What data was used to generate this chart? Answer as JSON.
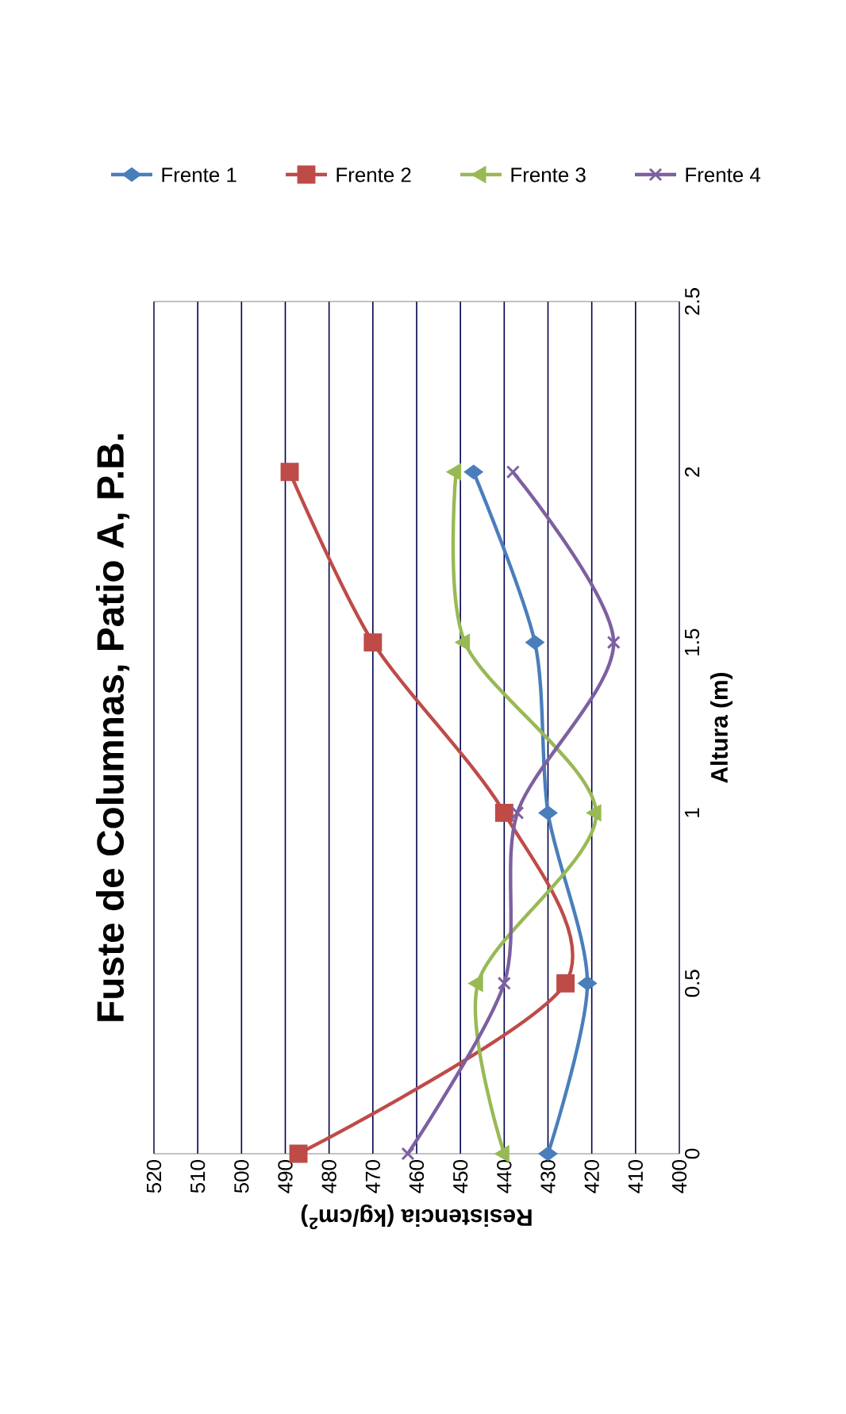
{
  "chart_data": {
    "type": "line",
    "title": "Fuste de Columnas, Patio A, P.B.",
    "xlabel": "Resistencia (kg/cm$^{2}$)",
    "ylabel": "Altura (m)",
    "series": [
      {
        "name": "Frente 1",
        "color": "#4a7ebb",
        "marker": "diamond",
        "x": [
          430,
          421,
          430,
          433,
          447
        ],
        "values": [
          0,
          0.5,
          1,
          1.5,
          2
        ]
      },
      {
        "name": "Frente 2",
        "color": "#be4b48",
        "marker": "square",
        "x": [
          487,
          426,
          440,
          470,
          489
        ],
        "values": [
          0,
          0.5,
          1,
          1.5,
          2
        ]
      },
      {
        "name": "Frente 3",
        "color": "#98b954",
        "marker": "triangle",
        "x": [
          440,
          446,
          419,
          449,
          451
        ],
        "values": [
          0,
          0.5,
          1,
          1.5,
          2
        ]
      },
      {
        "name": "Frente 4",
        "color": "#7d60a0",
        "marker": "cross",
        "x": [
          462,
          440,
          437,
          415,
          438
        ],
        "values": [
          0,
          0.5,
          1,
          1.5,
          2
        ]
      }
    ],
    "ylim": [
      0,
      2.5
    ],
    "yticks": [
      {
        "value": 0,
        "label": "0"
      },
      {
        "value": 0.5,
        "label": "0.5"
      },
      {
        "value": 1,
        "label": "1"
      },
      {
        "value": 1.5,
        "label": "1.5"
      },
      {
        "value": 2,
        "label": "2"
      },
      {
        "value": 2.5,
        "label": "2.5"
      }
    ],
    "xlim": [
      520,
      400
    ],
    "xticks": [
      {
        "value": 400,
        "label": "400"
      },
      {
        "value": 410,
        "label": "410"
      },
      {
        "value": 420,
        "label": "420"
      },
      {
        "value": 430,
        "label": "430"
      },
      {
        "value": 440,
        "label": "440"
      },
      {
        "value": 450,
        "label": "450"
      },
      {
        "value": 460,
        "label": "460"
      },
      {
        "value": 470,
        "label": "470"
      },
      {
        "value": 480,
        "label": "480"
      },
      {
        "value": 490,
        "label": "490"
      },
      {
        "value": 500,
        "label": "500"
      },
      {
        "value": 510,
        "label": "510"
      },
      {
        "value": 520,
        "label": "520"
      }
    ],
    "grid": "x",
    "legend": "top"
  }
}
